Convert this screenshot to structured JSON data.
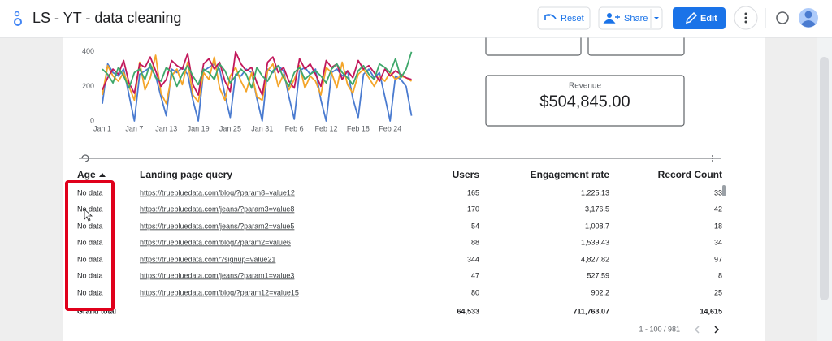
{
  "header": {
    "title": "LS - YT - data cleaning",
    "buttons": [
      "Reset",
      "Share",
      "Edit"
    ]
  },
  "chart_data": {
    "type": "line",
    "categories": [
      "Jan 1",
      null,
      null,
      null,
      null,
      null,
      "Jan 7",
      null,
      null,
      null,
      null,
      null,
      "Jan 13",
      null,
      null,
      null,
      null,
      null,
      "Jan 19",
      null,
      null,
      null,
      null,
      null,
      "Jan 25",
      null,
      null,
      null,
      null,
      null,
      "Jan 31",
      null,
      null,
      null,
      null,
      null,
      "Feb 6",
      null,
      null,
      null,
      null,
      null,
      "Feb 12",
      null,
      null,
      null,
      null,
      null,
      "Feb 18",
      null,
      null,
      null,
      null,
      null,
      "Feb 24",
      null,
      null,
      null,
      null
    ],
    "ylim": [
      0,
      500
    ],
    "yticks": [
      0,
      200,
      400
    ],
    "grid": false,
    "series": [
      {
        "color": "#4a7bd0",
        "values": [
          100,
          330,
          280,
          260,
          300,
          150,
          0,
          270,
          290,
          310,
          260,
          140,
          30,
          300,
          280,
          310,
          270,
          120,
          0,
          290,
          310,
          330,
          300,
          150,
          20,
          270,
          260,
          300,
          280,
          130,
          0,
          300,
          280,
          320,
          290,
          140,
          10,
          290,
          310,
          270,
          300,
          120,
          0,
          280,
          300,
          260,
          290,
          130,
          20,
          270,
          300,
          250,
          280,
          140,
          0,
          260,
          240,
          200,
          30
        ]
      },
      {
        "color": "#f4a52a",
        "values": [
          150,
          320,
          260,
          230,
          280,
          200,
          120,
          340,
          180,
          250,
          380,
          160,
          100,
          260,
          300,
          210,
          340,
          150,
          110,
          280,
          240,
          370,
          190,
          120,
          260,
          310,
          230,
          170,
          280,
          140,
          120,
          290,
          330,
          200,
          270,
          180,
          240,
          320,
          190,
          260,
          230,
          150,
          310,
          280,
          190,
          340,
          210,
          160,
          270,
          300,
          250,
          200,
          260,
          230,
          280,
          240,
          260,
          250,
          230
        ]
      },
      {
        "color": "#c2185b",
        "values": [
          180,
          250,
          300,
          270,
          350,
          220,
          160,
          330,
          310,
          370,
          290,
          200,
          240,
          350,
          320,
          300,
          390,
          210,
          150,
          330,
          360,
          300,
          340,
          230,
          170,
          400,
          330,
          290,
          310,
          220,
          150,
          340,
          370,
          280,
          310,
          230,
          190,
          360,
          300,
          330,
          270,
          200,
          350,
          310,
          330,
          240,
          290,
          250,
          350,
          300,
          320,
          280,
          230,
          300,
          260,
          290,
          270,
          250,
          240
        ]
      },
      {
        "color": "#3ea86b",
        "values": [
          300,
          270,
          220,
          310,
          260,
          190,
          280,
          300,
          240,
          330,
          250,
          230,
          310,
          280,
          200,
          270,
          320,
          260,
          210,
          300,
          280,
          240,
          330,
          290,
          220,
          260,
          300,
          270,
          190,
          310,
          260,
          230,
          290,
          320,
          250,
          200,
          280,
          310,
          240,
          270,
          290,
          260,
          220,
          300,
          330,
          280,
          250,
          210,
          290,
          320,
          270,
          240,
          330,
          310,
          280,
          360,
          250,
          300,
          400
        ]
      }
    ]
  },
  "scorecard": {
    "label": "Revenue",
    "value": "$504,845.00"
  },
  "table": {
    "columns": [
      "Age",
      "Landing page query",
      "Users",
      "Engagement rate",
      "Record Count"
    ],
    "rows": [
      [
        "No data",
        "https://truebluedata.com/blog/?param8=value12",
        "165",
        "1,225.13",
        "33"
      ],
      [
        "No data",
        "https://truebluedata.com/jeans/?param3=value8",
        "170",
        "3,176.5",
        "42"
      ],
      [
        "No data",
        "https://truebluedata.com/jeans/?param2=value5",
        "54",
        "1,008.7",
        "18"
      ],
      [
        "No data",
        "https://truebluedata.com/blog/?param2=value6",
        "88",
        "1,539.43",
        "34"
      ],
      [
        "No data",
        "https://truebluedata.com/?signup=value21",
        "344",
        "4,827.82",
        "97"
      ],
      [
        "No data",
        "https://truebluedata.com/jeans/?param1=value3",
        "47",
        "527.59",
        "8"
      ],
      [
        "No data",
        "https://truebluedata.com/blog/?param12=value15",
        "80",
        "902.2",
        "25"
      ]
    ],
    "total": [
      "Grand total",
      null,
      "64,533",
      "711,763.07",
      "14,615"
    ]
  },
  "pagination": "1 - 100 / 981"
}
